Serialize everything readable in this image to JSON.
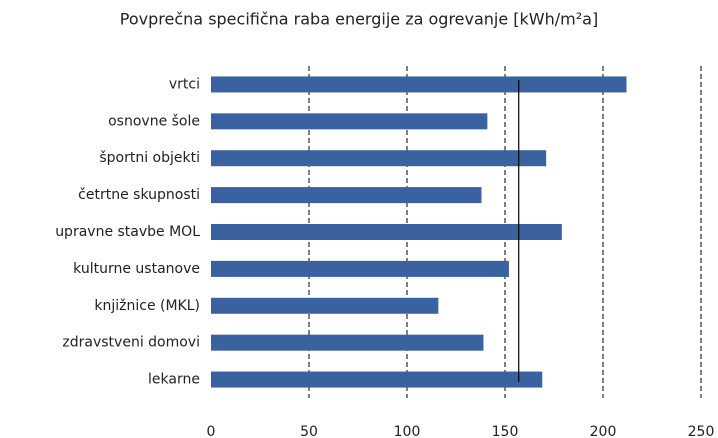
{
  "chart_data": {
    "type": "barh",
    "title": "Povprečna specifična raba energije za ogrevanje [kWh/m²a]",
    "categories": [
      "vrtci",
      "osnovne šole",
      "športni objekti",
      "četrtne skupnosti",
      "upravne stavbe MOL",
      "kulturne ustanove",
      "knjižnice (MKL)",
      "zdravstveni domovi",
      "lekarne"
    ],
    "values": [
      212,
      141,
      171,
      138,
      179,
      152,
      116,
      139,
      169
    ],
    "color": "#3b62a0",
    "xlim": [
      0,
      250
    ],
    "xticks": [
      0,
      50,
      100,
      150,
      200,
      250
    ],
    "grid": true,
    "reference_line": 157
  }
}
